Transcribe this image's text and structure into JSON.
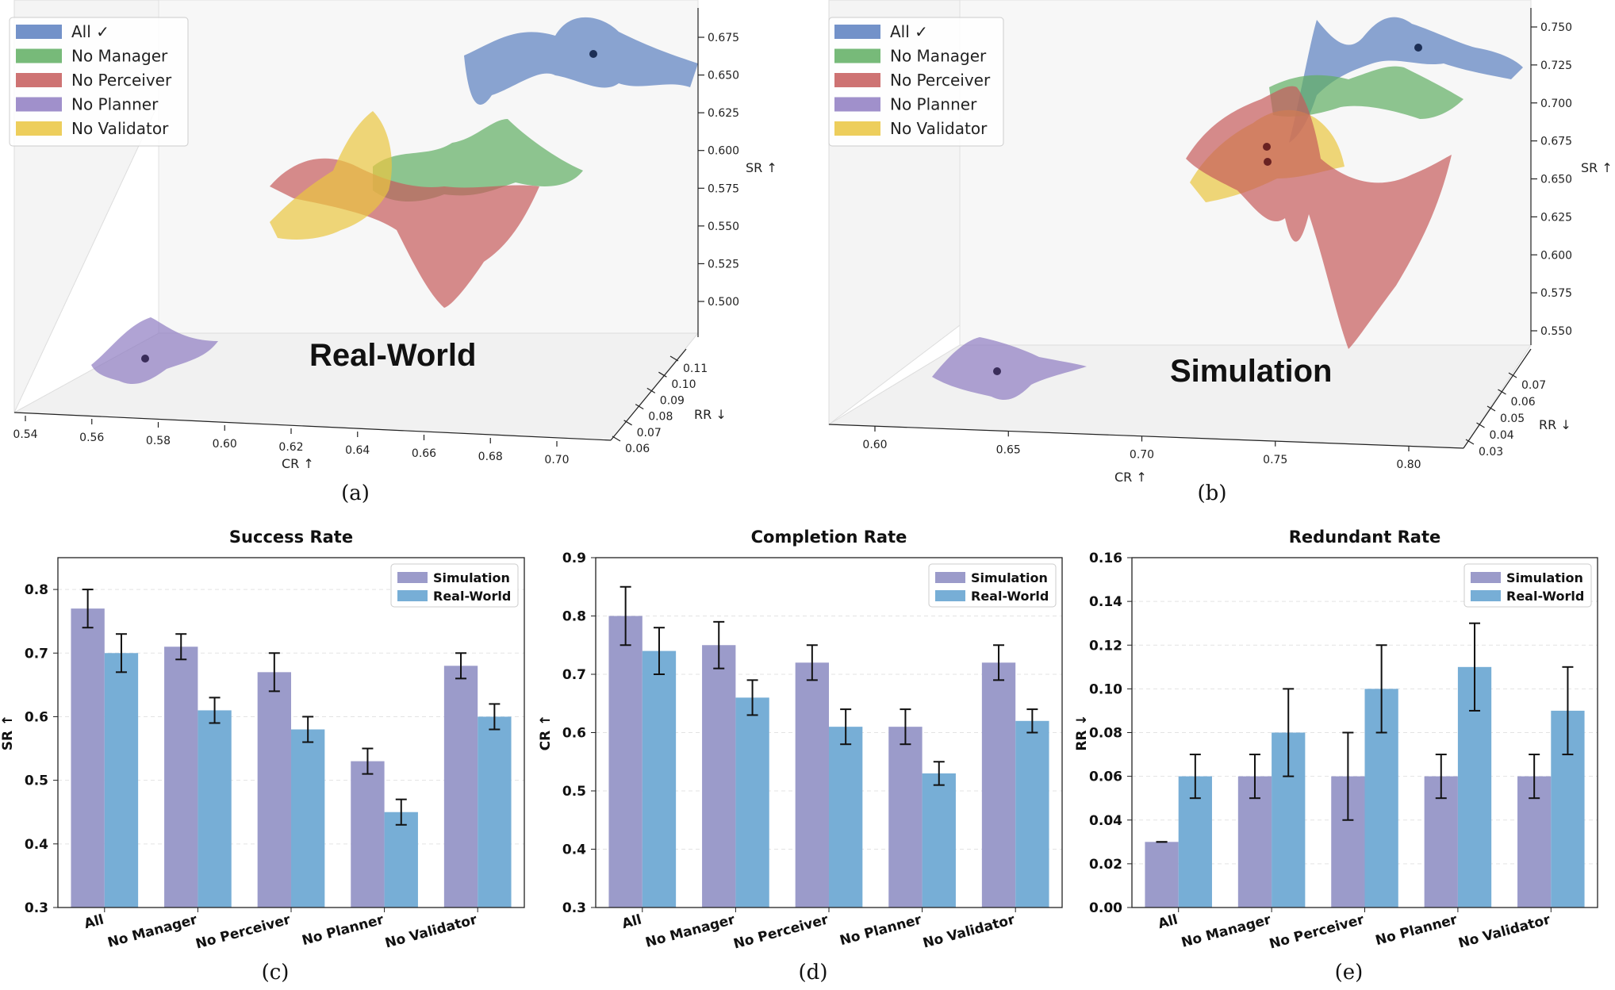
{
  "figure_3d": [
    {
      "id": "a",
      "caption": "(a)",
      "overlay_title": "Real-World",
      "legend": [
        {
          "label": "All ✓",
          "color": "#5a7fbf"
        },
        {
          "label": "No Manager",
          "color": "#5fae62"
        },
        {
          "label": "No Perceiver",
          "color": "#c65b5b"
        },
        {
          "label": "No Planner",
          "color": "#8f7cc2"
        },
        {
          "label": "No Validator",
          "color": "#eac640"
        }
      ],
      "x_axis": {
        "label": "CR ↑",
        "ticks": [
          "0.54",
          "0.56",
          "0.58",
          "0.60",
          "0.62",
          "0.64",
          "0.66",
          "0.68",
          "0.70"
        ]
      },
      "y_axis": {
        "label": "RR ↓",
        "ticks": [
          "0.06",
          "0.07",
          "0.08",
          "0.09",
          "0.10",
          "0.11"
        ]
      },
      "z_axis": {
        "label": "SR ↑",
        "ticks": [
          "0.500",
          "0.525",
          "0.550",
          "0.575",
          "0.600",
          "0.625",
          "0.650",
          "0.675"
        ]
      }
    },
    {
      "id": "b",
      "caption": "(b)",
      "overlay_title": "Simulation",
      "legend": [
        {
          "label": "All ✓",
          "color": "#5a7fbf"
        },
        {
          "label": "No Manager",
          "color": "#5fae62"
        },
        {
          "label": "No Perceiver",
          "color": "#c65b5b"
        },
        {
          "label": "No Planner",
          "color": "#8f7cc2"
        },
        {
          "label": "No Validator",
          "color": "#eac640"
        }
      ],
      "x_axis": {
        "label": "CR ↑",
        "ticks": [
          "0.60",
          "0.65",
          "0.70",
          "0.75",
          "0.80"
        ]
      },
      "y_axis": {
        "label": "RR ↓",
        "ticks": [
          "0.03",
          "0.04",
          "0.05",
          "0.06",
          "0.07"
        ]
      },
      "z_axis": {
        "label": "SR ↑",
        "ticks": [
          "0.550",
          "0.575",
          "0.600",
          "0.625",
          "0.650",
          "0.675",
          "0.700",
          "0.725",
          "0.750"
        ]
      }
    }
  ],
  "chart_data": [
    {
      "id": "c",
      "type": "bar",
      "caption": "(c)",
      "title": "Success Rate",
      "ylabel": "SR ↑",
      "xlabel": "",
      "ylim": [
        0.3,
        0.85
      ],
      "yticks": [
        "0.3",
        "0.4",
        "0.5",
        "0.6",
        "0.7",
        "0.8"
      ],
      "categories": [
        "All",
        "No Manager",
        "No Perceiver",
        "No Planner",
        "No Validator"
      ],
      "series": [
        {
          "name": "Simulation",
          "color": "#9b9bca",
          "values": [
            0.77,
            0.71,
            0.67,
            0.53,
            0.68
          ],
          "errors": [
            0.03,
            0.02,
            0.03,
            0.02,
            0.02
          ]
        },
        {
          "name": "Real-World",
          "color": "#77aed6",
          "values": [
            0.7,
            0.61,
            0.58,
            0.45,
            0.6
          ],
          "errors": [
            0.03,
            0.02,
            0.02,
            0.02,
            0.02
          ]
        }
      ]
    },
    {
      "id": "d",
      "type": "bar",
      "caption": "(d)",
      "title": "Completion Rate",
      "ylabel": "CR ↑",
      "xlabel": "",
      "ylim": [
        0.3,
        0.9
      ],
      "yticks": [
        "0.3",
        "0.4",
        "0.5",
        "0.6",
        "0.7",
        "0.8",
        "0.9"
      ],
      "categories": [
        "All",
        "No Manager",
        "No Perceiver",
        "No Planner",
        "No Validator"
      ],
      "series": [
        {
          "name": "Simulation",
          "color": "#9b9bca",
          "values": [
            0.8,
            0.75,
            0.72,
            0.61,
            0.72
          ],
          "errors": [
            0.05,
            0.04,
            0.03,
            0.03,
            0.03
          ]
        },
        {
          "name": "Real-World",
          "color": "#77aed6",
          "values": [
            0.74,
            0.66,
            0.61,
            0.53,
            0.62
          ],
          "errors": [
            0.04,
            0.03,
            0.03,
            0.02,
            0.02
          ]
        }
      ]
    },
    {
      "id": "e",
      "type": "bar",
      "caption": "(e)",
      "title": "Redundant Rate",
      "ylabel": "RR ↓",
      "xlabel": "",
      "ylim": [
        0.0,
        0.16
      ],
      "yticks": [
        "0.00",
        "0.02",
        "0.04",
        "0.06",
        "0.08",
        "0.10",
        "0.12",
        "0.14",
        "0.16"
      ],
      "categories": [
        "All",
        "No Manager",
        "No Perceiver",
        "No Planner",
        "No Validator"
      ],
      "series": [
        {
          "name": "Simulation",
          "color": "#9b9bca",
          "values": [
            0.03,
            0.06,
            0.06,
            0.06,
            0.06
          ],
          "errors": [
            0.0,
            0.01,
            0.02,
            0.01,
            0.01
          ]
        },
        {
          "name": "Real-World",
          "color": "#77aed6",
          "values": [
            0.06,
            0.08,
            0.1,
            0.11,
            0.09
          ],
          "errors": [
            0.01,
            0.02,
            0.02,
            0.02,
            0.02
          ]
        }
      ]
    }
  ]
}
